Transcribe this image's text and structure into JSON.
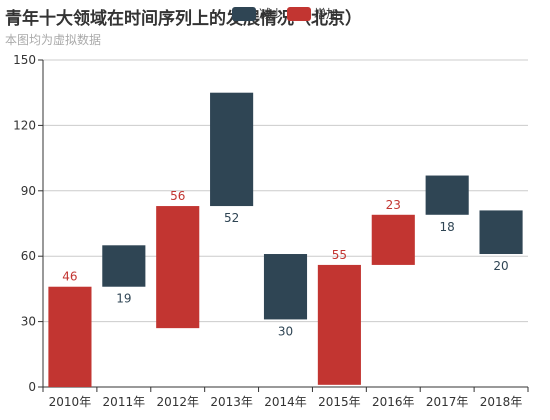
{
  "title": "青年十大领域在时间序列上的发展情况（北京）",
  "subtitle": "本图均为虚拟数据",
  "legend": [
    {
      "name": "减少",
      "color": "#2f4554"
    },
    {
      "name": "增加",
      "color": "#c23531"
    }
  ],
  "chart_data": {
    "type": "bar",
    "subtype": "waterfall",
    "categories": [
      "2010年",
      "2011年",
      "2012年",
      "2013年",
      "2014年",
      "2015年",
      "2016年",
      "2017年",
      "2018年"
    ],
    "bars": [
      {
        "category": "2010年",
        "base": 0,
        "top": 46,
        "label": "46",
        "series": "增加"
      },
      {
        "category": "2011年",
        "base": 46,
        "top": 65,
        "label": "19",
        "series": "减少"
      },
      {
        "category": "2012年",
        "base": 27,
        "top": 83,
        "label": "56",
        "series": "增加"
      },
      {
        "category": "2013年",
        "base": 83,
        "top": 135,
        "label": "52",
        "series": "减少"
      },
      {
        "category": "2014年",
        "base": 31,
        "top": 61,
        "label": "30",
        "series": "减少"
      },
      {
        "category": "2015年",
        "base": 1,
        "top": 56,
        "label": "55",
        "series": "增加"
      },
      {
        "category": "2016年",
        "base": 56,
        "top": 79,
        "label": "23",
        "series": "增加"
      },
      {
        "category": "2017年",
        "base": 79,
        "top": 97,
        "label": "18",
        "series": "减少"
      },
      {
        "category": "2018年",
        "base": 61,
        "top": 81,
        "label": "20",
        "series": "减少"
      }
    ],
    "yticks": [
      0,
      30,
      60,
      90,
      120,
      150
    ],
    "ylim": [
      0,
      150
    ],
    "grid": true,
    "legend_position": "top"
  }
}
